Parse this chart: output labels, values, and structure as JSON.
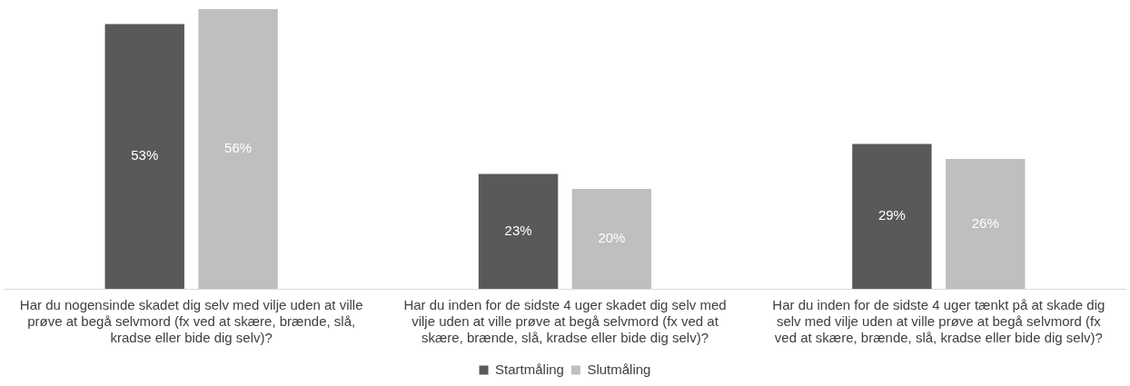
{
  "chart_data": {
    "type": "bar",
    "categories": [
      "Har du nogensinde skadet dig selv med vilje uden at ville prøve at begå selvmord (fx ved at skære, brænde, slå, kradse eller bide dig selv)?",
      "Har du inden for de sidste 4 uger skadet dig selv med vilje uden at ville prøve at begå selvmord (fx ved at skære, brænde, slå, kradse eller bide dig selv)?",
      "Har du inden for de sidste 4 uger tænkt på at skade dig selv med vilje uden at ville prøve at begå selvmord (fx ved at skære, brænde, slå, kradse eller bide dig selv)?"
    ],
    "series": [
      {
        "name": "Startmåling",
        "color": "#595959",
        "values": [
          53,
          23,
          29
        ],
        "value_labels": [
          "53%",
          "23%",
          "29%"
        ]
      },
      {
        "name": "Slutmåling",
        "color": "#bfbfbf",
        "values": [
          56,
          20,
          26
        ],
        "value_labels": [
          "56%",
          "20%",
          "26%"
        ]
      }
    ],
    "grid": false,
    "legend": "bottom",
    "tick_labels": "x"
  }
}
